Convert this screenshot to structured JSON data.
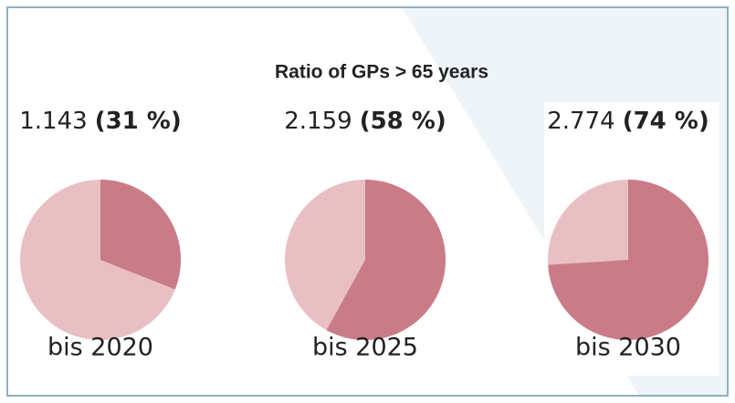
{
  "chart_data": {
    "type": "pie",
    "title": "Ratio of GPs > 65 years",
    "categories": [
      "bis 2020",
      "bis 2025",
      "bis 2030"
    ],
    "counts": [
      1143,
      2159,
      2774
    ],
    "count_labels": [
      "1.143",
      "2.159",
      "2.774"
    ],
    "values": [
      31,
      58,
      74
    ],
    "value_labels": [
      "(31 %)",
      "(58 %)",
      "(74 %)"
    ],
    "color": "#c97c87",
    "rest_color": "#e8c0c4"
  }
}
